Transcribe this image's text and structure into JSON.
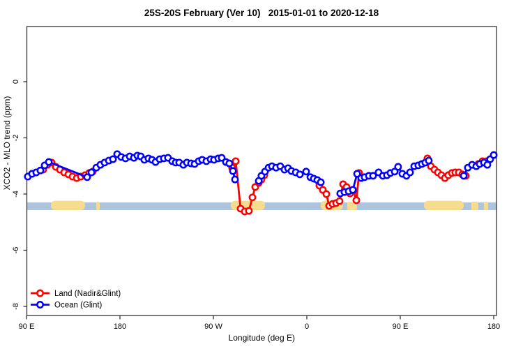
{
  "title": "25S-20S February (Ver 10)   2015-01-01 to 2020-12-18",
  "chart_data": {
    "type": "line",
    "title": "25S-20S February (Ver 10)   2015-01-01 to 2020-12-18",
    "xlabel": "Longitude (deg E)",
    "ylabel": "XCO2 - MLO trend (ppm)",
    "x_axis": {
      "note": "axis position in degrees east of 90E, wrapping 90E->180->90W->0->90E->180",
      "ticks_pos_deg": [
        0,
        90,
        180,
        270,
        360,
        450
      ],
      "tick_labels": [
        "90 E",
        "180",
        "90 W",
        "0",
        "90 E",
        "180"
      ],
      "range_pos_deg": [
        0,
        452.7
      ]
    },
    "y_axis": {
      "ticks": [
        0,
        -2,
        -4,
        -6,
        -8
      ],
      "tick_labels": [
        "0",
        "-2",
        "-4",
        "-6",
        "-8"
      ],
      "range": [
        -8.32,
        1.96
      ]
    },
    "band": {
      "meaning": "ocean strip with land patches",
      "from_ppm": -4.3,
      "to_ppm": -4.57,
      "color": "#AEC3DC",
      "land_color": "#F5DC8F",
      "land_patches_pos_deg": [
        [
          23.5,
          56.4
        ],
        [
          67.2,
          70.5
        ],
        [
          196.8,
          229.7
        ],
        [
          283.4,
          304.9
        ],
        [
          308.9,
          318.4
        ],
        [
          382.8,
          421.1
        ],
        [
          428.4,
          435.2
        ],
        [
          440.5,
          444.6
        ]
      ]
    },
    "legend": {
      "position": "bottom-left",
      "entries": [
        "Land (Nadir&Glint)",
        "Ocean (Glint)"
      ]
    },
    "series": [
      {
        "name": "Land (Nadir&Glint)",
        "color": "#FF0000",
        "segments": [
          [
            [
              16.1,
              -3.13
            ],
            [
              20.1,
              -2.96
            ],
            [
              24.2,
              -2.88
            ],
            [
              28.2,
              -3.03
            ],
            [
              32.2,
              -3.13
            ],
            [
              36.3,
              -3.23
            ],
            [
              40.3,
              -3.3
            ],
            [
              44.3,
              -3.38
            ],
            [
              48.4,
              -3.43
            ],
            [
              52.4,
              -3.38
            ],
            [
              56.4,
              -3.33
            ],
            [
              60.4,
              -3.25
            ],
            [
              63.8,
              -3.2
            ]
          ],
          [
            [
              198.1,
              -3.06
            ],
            [
              201.5,
              -2.83
            ],
            [
              206.2,
              -4.52
            ],
            [
              210.2,
              -4.62
            ],
            [
              214.2,
              -4.6
            ],
            [
              217.6,
              -4.12
            ],
            [
              220.3,
              -3.75
            ],
            [
              223.7,
              -3.6
            ],
            [
              226.3,
              -3.48
            ],
            [
              229.0,
              -3.33
            ]
          ],
          [
            [
              282.1,
              -3.7
            ],
            [
              285.4,
              -3.85
            ],
            [
              288.8,
              -4.0
            ],
            [
              291.5,
              -4.42
            ],
            [
              294.8,
              -4.35
            ],
            [
              298.2,
              -4.32
            ],
            [
              301.5,
              -4.25
            ],
            [
              304.9,
              -3.65
            ],
            [
              308.3,
              -3.75
            ],
            [
              311.6,
              -3.98
            ],
            [
              315.0,
              -3.88
            ],
            [
              317.7,
              -4.22
            ],
            [
              320.4,
              -3.25
            ]
          ],
          [
            [
              386.2,
              -2.73
            ],
            [
              389.5,
              -3.01
            ],
            [
              392.9,
              -3.13
            ],
            [
              396.2,
              -3.23
            ],
            [
              399.6,
              -3.33
            ],
            [
              403.0,
              -3.43
            ],
            [
              406.3,
              -3.33
            ],
            [
              409.7,
              -3.25
            ],
            [
              413.0,
              -3.23
            ],
            [
              416.4,
              -3.23
            ],
            [
              419.7,
              -3.3
            ],
            [
              423.1,
              -3.35
            ]
          ],
          [
            [
              435.2,
              -2.93
            ],
            [
              439.2,
              -2.83
            ],
            [
              443.2,
              -2.83
            ]
          ]
        ]
      },
      {
        "name": "Ocean (Glint)",
        "color": "#0000FF",
        "segments": [
          [
            [
              1.3,
              -3.38
            ],
            [
              5.4,
              -3.28
            ],
            [
              9.4,
              -3.23
            ],
            [
              13.4,
              -3.16
            ],
            [
              17.5,
              -2.98
            ],
            [
              21.5,
              -2.86
            ],
            [
              58.4,
              -3.4
            ],
            [
              62.5,
              -3.23
            ],
            [
              67.2,
              -3.06
            ],
            [
              71.2,
              -2.96
            ],
            [
              75.2,
              -2.88
            ],
            [
              79.3,
              -2.81
            ],
            [
              83.3,
              -2.76
            ],
            [
              87.3,
              -2.58
            ],
            [
              91.3,
              -2.68
            ],
            [
              95.4,
              -2.73
            ],
            [
              99.4,
              -2.66
            ],
            [
              103.4,
              -2.71
            ],
            [
              106.8,
              -2.63
            ],
            [
              110.1,
              -2.66
            ],
            [
              113.5,
              -2.78
            ],
            [
              117.5,
              -2.73
            ],
            [
              120.9,
              -2.78
            ],
            [
              124.3,
              -2.86
            ],
            [
              128.3,
              -2.76
            ],
            [
              132.3,
              -2.73
            ],
            [
              136.3,
              -2.71
            ],
            [
              140.4,
              -2.83
            ],
            [
              143.7,
              -2.88
            ],
            [
              147.1,
              -2.88
            ],
            [
              151.1,
              -2.96
            ],
            [
              154.5,
              -2.88
            ],
            [
              158.5,
              -2.91
            ],
            [
              161.9,
              -2.93
            ],
            [
              165.9,
              -2.83
            ],
            [
              169.2,
              -2.78
            ],
            [
              173.3,
              -2.83
            ],
            [
              177.3,
              -2.76
            ],
            [
              180.6,
              -2.78
            ],
            [
              184.7,
              -2.73
            ],
            [
              188.0,
              -2.71
            ],
            [
              192.1,
              -2.86
            ],
            [
              195.4,
              -2.91
            ],
            [
              198.8,
              -3.18
            ],
            [
              200.8,
              -3.48
            ]
          ],
          [
            [
              223.7,
              -3.53
            ],
            [
              226.3,
              -3.35
            ],
            [
              229.7,
              -3.2
            ],
            [
              233.1,
              -3.06
            ],
            [
              236.4,
              -3.01
            ],
            [
              240.4,
              -3.06
            ],
            [
              244.5,
              -3.01
            ],
            [
              248.5,
              -3.13
            ],
            [
              251.9,
              -3.08
            ],
            [
              255.2,
              -3.18
            ],
            [
              259.3,
              -3.23
            ],
            [
              263.3,
              -3.3
            ],
            [
              269.3,
              -3.2
            ],
            [
              273.4,
              -3.4
            ],
            [
              276.7,
              -3.45
            ],
            [
              280.1,
              -3.5
            ],
            [
              283.4,
              -3.58
            ]
          ],
          [
            [
              302.2,
              -3.98
            ],
            [
              306.3,
              -3.93
            ],
            [
              310.3,
              -3.9
            ],
            [
              314.3,
              -3.85
            ],
            [
              318.4,
              -3.28
            ],
            [
              322.4,
              -3.43
            ],
            [
              325.7,
              -3.4
            ],
            [
              329.8,
              -3.35
            ],
            [
              333.8,
              -3.35
            ],
            [
              339.1,
              -3.23
            ],
            [
              343.2,
              -3.35
            ],
            [
              347.2,
              -3.33
            ],
            [
              350.5,
              -3.25
            ],
            [
              354.6,
              -3.2
            ],
            [
              357.9,
              -3.03
            ],
            [
              362.0,
              -3.28
            ],
            [
              366.0,
              -3.35
            ],
            [
              369.4,
              -3.23
            ],
            [
              373.4,
              -3.01
            ],
            [
              377.4,
              -2.98
            ],
            [
              380.8,
              -2.93
            ],
            [
              384.1,
              -2.88
            ],
            [
              387.5,
              -2.81
            ]
          ],
          [
            [
              421.1,
              -3.35
            ],
            [
              425.1,
              -3.06
            ],
            [
              429.2,
              -2.96
            ],
            [
              433.2,
              -3.01
            ],
            [
              436.5,
              -2.93
            ],
            [
              440.6,
              -2.88
            ],
            [
              443.9,
              -2.96
            ],
            [
              446.6,
              -2.76
            ],
            [
              450.0,
              -2.61
            ]
          ]
        ]
      }
    ]
  }
}
